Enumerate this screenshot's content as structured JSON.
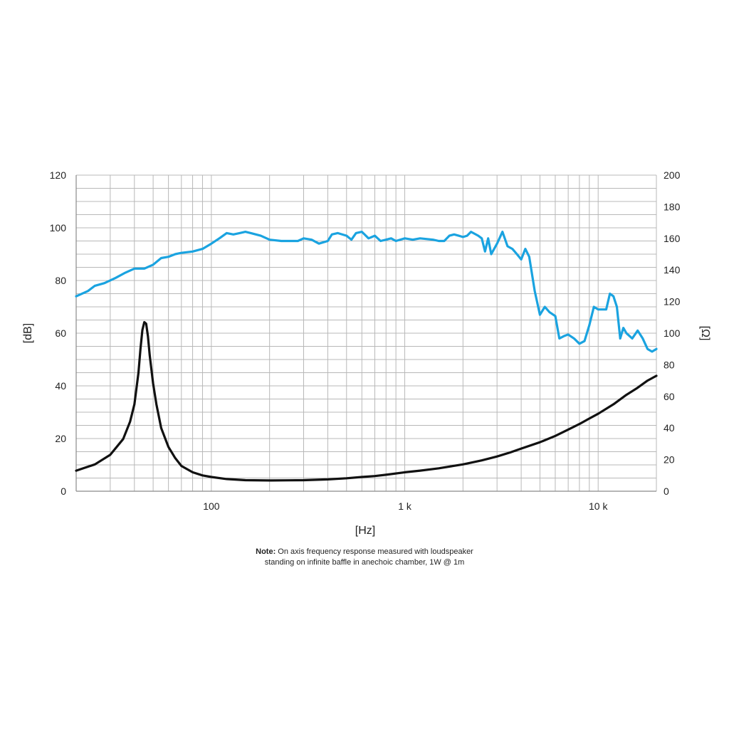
{
  "chart_data": {
    "type": "line",
    "xlabel": "[Hz]",
    "ylabel_left": "[dB]",
    "ylabel_right": "[Ω]",
    "x_scale": "log",
    "xlim": [
      20,
      20000
    ],
    "ylim_left": [
      0,
      120
    ],
    "ylim_right": [
      0,
      200
    ],
    "x_ticks": [
      {
        "value": 100,
        "label": "100"
      },
      {
        "value": 1000,
        "label": "1 k"
      },
      {
        "value": 10000,
        "label": "10 k"
      }
    ],
    "y_ticks_left": [
      "0",
      "20",
      "40",
      "60",
      "80",
      "100",
      "120"
    ],
    "y_ticks_right": [
      "0",
      "20",
      "40",
      "60",
      "80",
      "100",
      "120",
      "140",
      "160",
      "180",
      "200"
    ],
    "grid": true,
    "series": [
      {
        "axis": "left",
        "color": "#1aa3e0",
        "points": [
          [
            20,
            74
          ],
          [
            23,
            76
          ],
          [
            25,
            78
          ],
          [
            28,
            79
          ],
          [
            32,
            81
          ],
          [
            36,
            83
          ],
          [
            40,
            84.5
          ],
          [
            45,
            84.5
          ],
          [
            50,
            86
          ],
          [
            55,
            88.5
          ],
          [
            60,
            89
          ],
          [
            65,
            90
          ],
          [
            70,
            90.5
          ],
          [
            80,
            91
          ],
          [
            90,
            92
          ],
          [
            100,
            94
          ],
          [
            110,
            96
          ],
          [
            120,
            98
          ],
          [
            130,
            97.5
          ],
          [
            140,
            98
          ],
          [
            150,
            98.5
          ],
          [
            160,
            98
          ],
          [
            180,
            97
          ],
          [
            200,
            95.5
          ],
          [
            230,
            95
          ],
          [
            260,
            95
          ],
          [
            280,
            95
          ],
          [
            300,
            96
          ],
          [
            330,
            95.5
          ],
          [
            360,
            94
          ],
          [
            400,
            95
          ],
          [
            420,
            97.5
          ],
          [
            450,
            98
          ],
          [
            500,
            97
          ],
          [
            530,
            95.5
          ],
          [
            560,
            98
          ],
          [
            600,
            98.5
          ],
          [
            650,
            96
          ],
          [
            700,
            97
          ],
          [
            750,
            95
          ],
          [
            800,
            95.5
          ],
          [
            850,
            96
          ],
          [
            900,
            95
          ],
          [
            1000,
            96
          ],
          [
            1100,
            95.5
          ],
          [
            1200,
            96
          ],
          [
            1400,
            95.5
          ],
          [
            1500,
            95
          ],
          [
            1600,
            95
          ],
          [
            1700,
            97
          ],
          [
            1800,
            97.5
          ],
          [
            1900,
            97
          ],
          [
            2000,
            96.5
          ],
          [
            2100,
            97
          ],
          [
            2200,
            98.5
          ],
          [
            2400,
            97
          ],
          [
            2500,
            96
          ],
          [
            2600,
            91
          ],
          [
            2700,
            96
          ],
          [
            2800,
            90
          ],
          [
            3000,
            94
          ],
          [
            3200,
            98.5
          ],
          [
            3400,
            93
          ],
          [
            3600,
            92
          ],
          [
            3800,
            90
          ],
          [
            4000,
            88
          ],
          [
            4200,
            92
          ],
          [
            4400,
            89
          ],
          [
            4700,
            76
          ],
          [
            5000,
            67
          ],
          [
            5300,
            70
          ],
          [
            5600,
            68
          ],
          [
            6000,
            66.5
          ],
          [
            6300,
            58
          ],
          [
            6700,
            59
          ],
          [
            7000,
            59.5
          ],
          [
            7500,
            58
          ],
          [
            8000,
            56
          ],
          [
            8500,
            57
          ],
          [
            9000,
            63
          ],
          [
            9500,
            70
          ],
          [
            10000,
            69
          ],
          [
            10500,
            69
          ],
          [
            11000,
            69
          ],
          [
            11500,
            75
          ],
          [
            12000,
            74
          ],
          [
            12500,
            70
          ],
          [
            13000,
            58
          ],
          [
            13500,
            62
          ],
          [
            14000,
            60
          ],
          [
            15000,
            58
          ],
          [
            16000,
            61
          ],
          [
            17000,
            58
          ],
          [
            18000,
            54
          ],
          [
            19000,
            53
          ],
          [
            20000,
            54
          ]
        ]
      },
      {
        "axis": "right",
        "color": "#111111",
        "points": [
          [
            20,
            13
          ],
          [
            25,
            17
          ],
          [
            30,
            23
          ],
          [
            35,
            33
          ],
          [
            38,
            44
          ],
          [
            40,
            55
          ],
          [
            42,
            75
          ],
          [
            43,
            90
          ],
          [
            44,
            102
          ],
          [
            45,
            107
          ],
          [
            46,
            106
          ],
          [
            47,
            98
          ],
          [
            48,
            86
          ],
          [
            50,
            68
          ],
          [
            52,
            55
          ],
          [
            55,
            40
          ],
          [
            60,
            28
          ],
          [
            65,
            21
          ],
          [
            70,
            16
          ],
          [
            80,
            12
          ],
          [
            90,
            10
          ],
          [
            100,
            9
          ],
          [
            120,
            7.7
          ],
          [
            150,
            7
          ],
          [
            200,
            6.8
          ],
          [
            250,
            6.9
          ],
          [
            300,
            7
          ],
          [
            400,
            7.5
          ],
          [
            500,
            8.2
          ],
          [
            600,
            9
          ],
          [
            700,
            9.6
          ],
          [
            800,
            10.4
          ],
          [
            1000,
            12
          ],
          [
            1200,
            13
          ],
          [
            1500,
            14.5
          ],
          [
            2000,
            17
          ],
          [
            2500,
            19.5
          ],
          [
            3000,
            22
          ],
          [
            3500,
            24.5
          ],
          [
            4000,
            27
          ],
          [
            5000,
            31
          ],
          [
            6000,
            35
          ],
          [
            7000,
            39
          ],
          [
            8000,
            42.5
          ],
          [
            9000,
            46
          ],
          [
            10000,
            49
          ],
          [
            12000,
            55
          ],
          [
            14000,
            61
          ],
          [
            16000,
            65.5
          ],
          [
            18000,
            70
          ],
          [
            20000,
            73
          ]
        ]
      }
    ]
  },
  "note": {
    "bold": "Note:",
    "line1": " On axis frequency response measured with loudspeaker",
    "line2": "standing on infinite baffle in anechoic chamber, 1W @ 1m"
  }
}
